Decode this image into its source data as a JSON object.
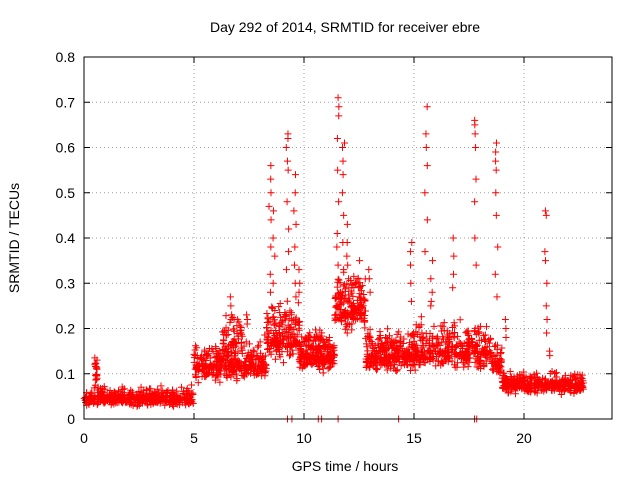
{
  "chart_data": {
    "type": "scatter",
    "title": "Day 292 of 2014, SRMTID for receiver ebre",
    "xlabel": "GPS time / hours",
    "ylabel": "SRMTID / TECUs",
    "xlim": [
      0,
      24
    ],
    "ylim": [
      0,
      0.8
    ],
    "grid": true,
    "marker": "+",
    "color": "#ff0000",
    "xticks": [
      0,
      5,
      10,
      15,
      20
    ],
    "yticks": [
      0,
      0.1,
      0.2,
      0.3,
      0.4,
      0.5,
      0.6,
      0.7,
      0.8
    ],
    "xtick_labels": [
      "0",
      "5",
      "10",
      "15",
      "20"
    ],
    "ytick_labels": [
      "0",
      "0.1",
      "0.2",
      "0.3",
      "0.4",
      "0.5",
      "0.6",
      "0.7",
      "0.8"
    ],
    "series": [
      {
        "name": "SRMTID",
        "segments": [
          {
            "t0": 0.0,
            "t1": 0.5,
            "base": 0.045,
            "noise": 0.02,
            "n": 50
          },
          {
            "t0": 0.5,
            "t1": 0.6,
            "base": 0.1,
            "noise": 0.035,
            "n": 14
          },
          {
            "t0": 0.6,
            "t1": 5.0,
            "base": 0.045,
            "noise": 0.022,
            "n": 420
          },
          {
            "t0": 5.0,
            "t1": 8.3,
            "base": 0.12,
            "noise": 0.045,
            "n": 330
          },
          {
            "t0": 6.3,
            "t1": 7.2,
            "base": 0.17,
            "noise": 0.06,
            "n": 60
          },
          {
            "t0": 8.3,
            "t1": 9.8,
            "base": 0.18,
            "noise": 0.07,
            "n": 180
          },
          {
            "t0": 9.8,
            "t1": 11.4,
            "base": 0.14,
            "noise": 0.05,
            "n": 220
          },
          {
            "t0": 11.4,
            "t1": 12.8,
            "base": 0.25,
            "noise": 0.07,
            "n": 170
          },
          {
            "t0": 12.8,
            "t1": 15.0,
            "base": 0.14,
            "noise": 0.05,
            "n": 260
          },
          {
            "t0": 15.0,
            "t1": 18.5,
            "base": 0.15,
            "noise": 0.055,
            "n": 340
          },
          {
            "t0": 18.5,
            "t1": 19.0,
            "base": 0.12,
            "noise": 0.04,
            "n": 50
          },
          {
            "t0": 19.0,
            "t1": 22.7,
            "base": 0.075,
            "noise": 0.025,
            "n": 360
          }
        ],
        "peaks": [
          {
            "t": 0.55,
            "values": [
              0.13,
              0.12,
              0.11,
              0.135
            ]
          },
          {
            "t": 6.7,
            "values": [
              0.27,
              0.25,
              0.23,
              0.22
            ]
          },
          {
            "t": 7.4,
            "values": [
              0.23,
              0.22,
              0.21
            ]
          },
          {
            "t": 8.45,
            "values": [
              0.56,
              0.53,
              0.5,
              0.47,
              0.44,
              0.38,
              0.32,
              0.28
            ]
          },
          {
            "t": 8.65,
            "values": [
              0.46,
              0.4,
              0.36,
              0.3
            ]
          },
          {
            "t": 9.25,
            "values": [
              0.63,
              0.62,
              0.6,
              0.57,
              0.55,
              0.48,
              0.42,
              0.37,
              0.33
            ]
          },
          {
            "t": 9.6,
            "values": [
              0.54,
              0.5,
              0.46,
              0.43,
              0.38,
              0.34,
              0.3,
              0.27
            ]
          },
          {
            "t": 9.75,
            "values": [
              0.33,
              0.3,
              0.28
            ]
          },
          {
            "t": 11.55,
            "values": [
              0.71,
              0.69,
              0.67,
              0.62,
              0.55,
              0.48,
              0.41,
              0.38,
              0.34
            ]
          },
          {
            "t": 11.8,
            "values": [
              0.61,
              0.6,
              0.57,
              0.54,
              0.5,
              0.45,
              0.39,
              0.33
            ]
          },
          {
            "t": 12.0,
            "values": [
              0.43,
              0.39,
              0.36,
              0.34,
              0.31
            ]
          },
          {
            "t": 12.5,
            "values": [
              0.35,
              0.31,
              0.29,
              0.27
            ]
          },
          {
            "t": 13.0,
            "values": [
              0.33,
              0.31,
              0.28
            ]
          },
          {
            "t": 14.85,
            "values": [
              0.39,
              0.37,
              0.34,
              0.3,
              0.26
            ]
          },
          {
            "t": 15.55,
            "values": [
              0.69,
              0.63,
              0.6,
              0.56,
              0.5,
              0.44,
              0.37
            ]
          },
          {
            "t": 15.8,
            "values": [
              0.35,
              0.31,
              0.28,
              0.26,
              0.25
            ]
          },
          {
            "t": 16.8,
            "values": [
              0.4,
              0.36,
              0.32,
              0.29
            ]
          },
          {
            "t": 17.8,
            "values": [
              0.66,
              0.65,
              0.63,
              0.6,
              0.53,
              0.48,
              0.4,
              0.34
            ]
          },
          {
            "t": 18.75,
            "values": [
              0.61,
              0.59,
              0.57,
              0.55,
              0.5,
              0.45,
              0.38,
              0.32,
              0.27
            ]
          },
          {
            "t": 19.2,
            "values": [
              0.22,
              0.2,
              0.18
            ]
          },
          {
            "t": 21.0,
            "values": [
              0.46,
              0.45,
              0.37,
              0.35,
              0.3,
              0.25,
              0.22,
              0.19
            ]
          },
          {
            "t": 21.2,
            "values": [
              0.15,
              0.14
            ]
          }
        ],
        "dropouts": [
          9.25,
          9.45,
          10.65,
          10.8,
          11.55,
          14.3,
          17.75,
          17.85
        ]
      }
    ]
  }
}
